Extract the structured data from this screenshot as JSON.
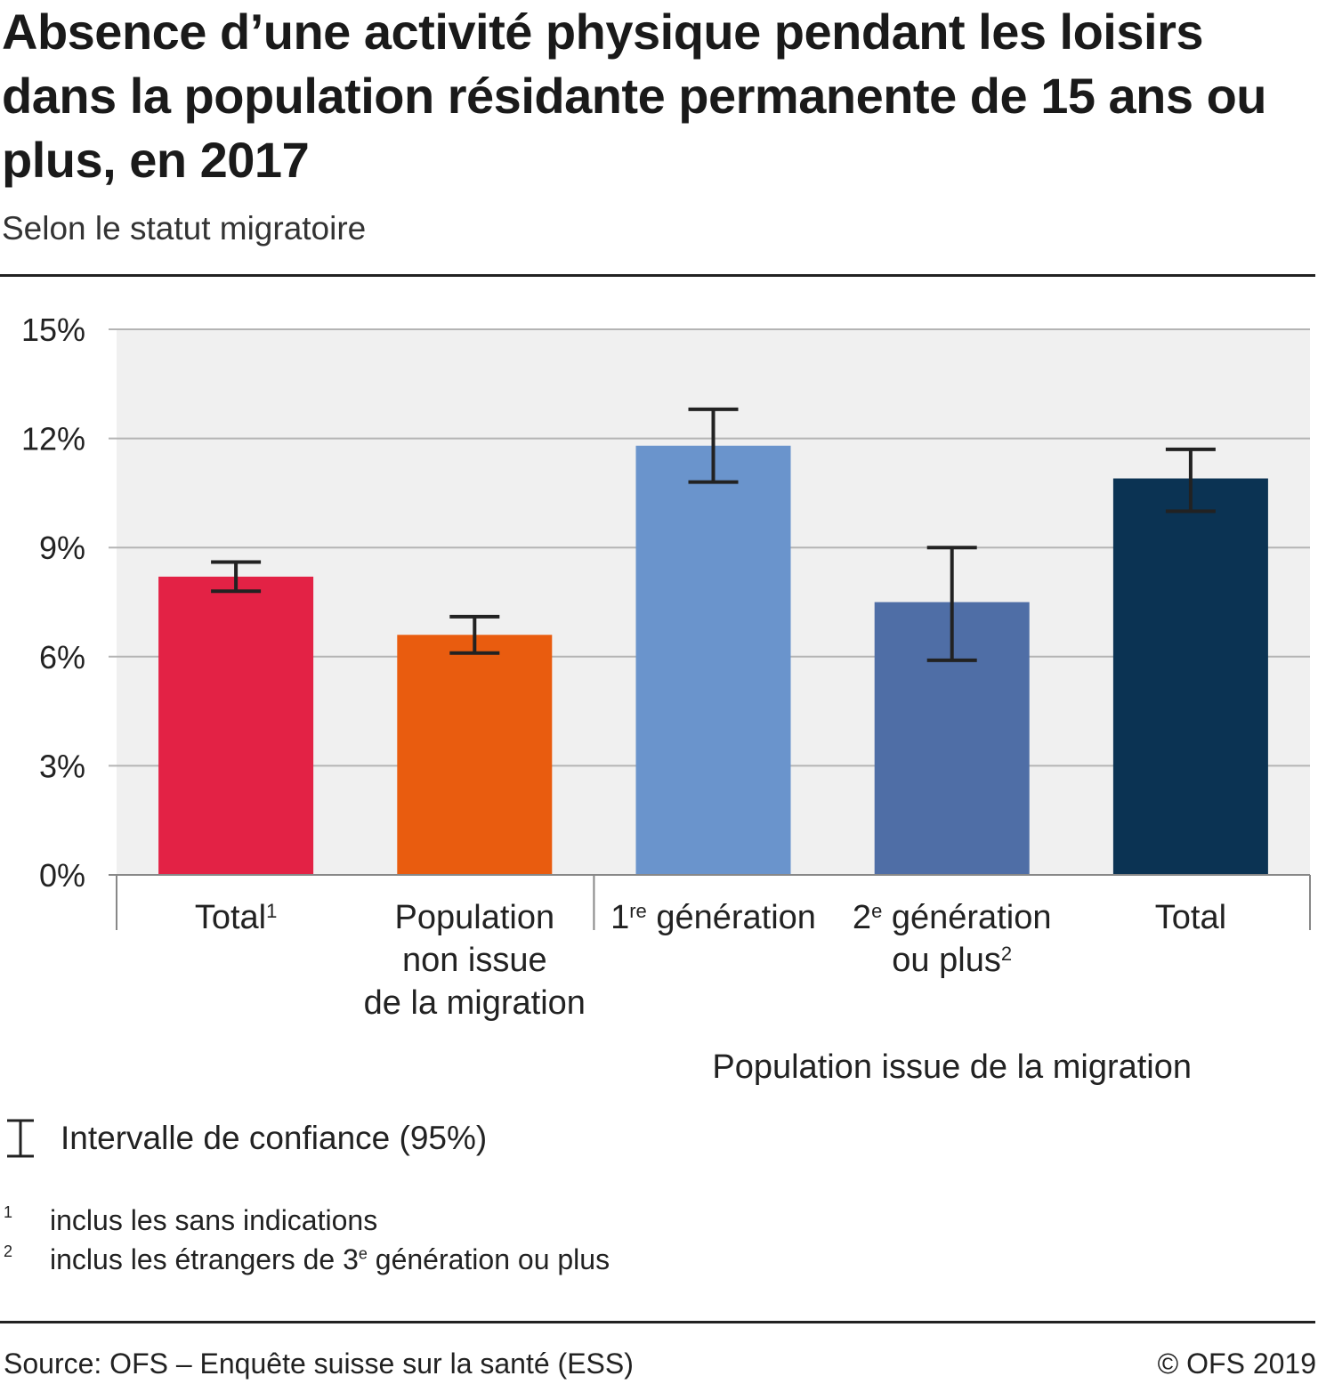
{
  "header": {
    "title": "Absence d’une activité physique pendant les loisirs dans la population résidante permanente de 15 ans ou plus, en 2017",
    "subtitle": "Selon le statut migratoire"
  },
  "chart_data": {
    "type": "bar",
    "categories": [
      {
        "label": "Total",
        "sup": "1"
      },
      {
        "label": "Population non issue de la migration",
        "lines": [
          "Population",
          "non issue",
          "de la migration"
        ]
      },
      {
        "label": "1re génération",
        "pre": "1",
        "sup": "re",
        "post": " génération"
      },
      {
        "label": "2e génération ou plus",
        "pre": "2",
        "sup": "e",
        "post": " génération",
        "line2": "ou plus",
        "sup2": "2"
      },
      {
        "label": "Total"
      }
    ],
    "values": [
      8.2,
      6.6,
      11.8,
      7.5,
      10.9
    ],
    "ci_low": [
      7.8,
      6.1,
      10.8,
      5.9,
      10.0
    ],
    "ci_high": [
      8.6,
      7.1,
      12.8,
      9.0,
      11.7
    ],
    "colors": [
      "#e32245",
      "#e95c0f",
      "#6a94cc",
      "#4f6ea6",
      "#0b3353"
    ],
    "group_label": "Population issue de la migration",
    "ylim": [
      0,
      15
    ],
    "yticks": [
      0,
      3,
      6,
      9,
      12,
      15
    ],
    "ytick_labels": [
      "0%",
      "3%",
      "6%",
      "9%",
      "12%",
      "15%"
    ],
    "grid": true,
    "xlabel": "",
    "ylabel": ""
  },
  "legend": {
    "ci_label": "Intervalle de confiance (95%)"
  },
  "footnotes": [
    {
      "num": "1",
      "text": "inclus les sans indications"
    },
    {
      "num": "2",
      "text": "inclus les étrangers de 3",
      "sup": "e",
      "text_after": " génération ou plus"
    }
  ],
  "footer": {
    "source": "Source: OFS – Enquête suisse sur la santé (ESS)",
    "copyright": "© OFS 2019"
  }
}
